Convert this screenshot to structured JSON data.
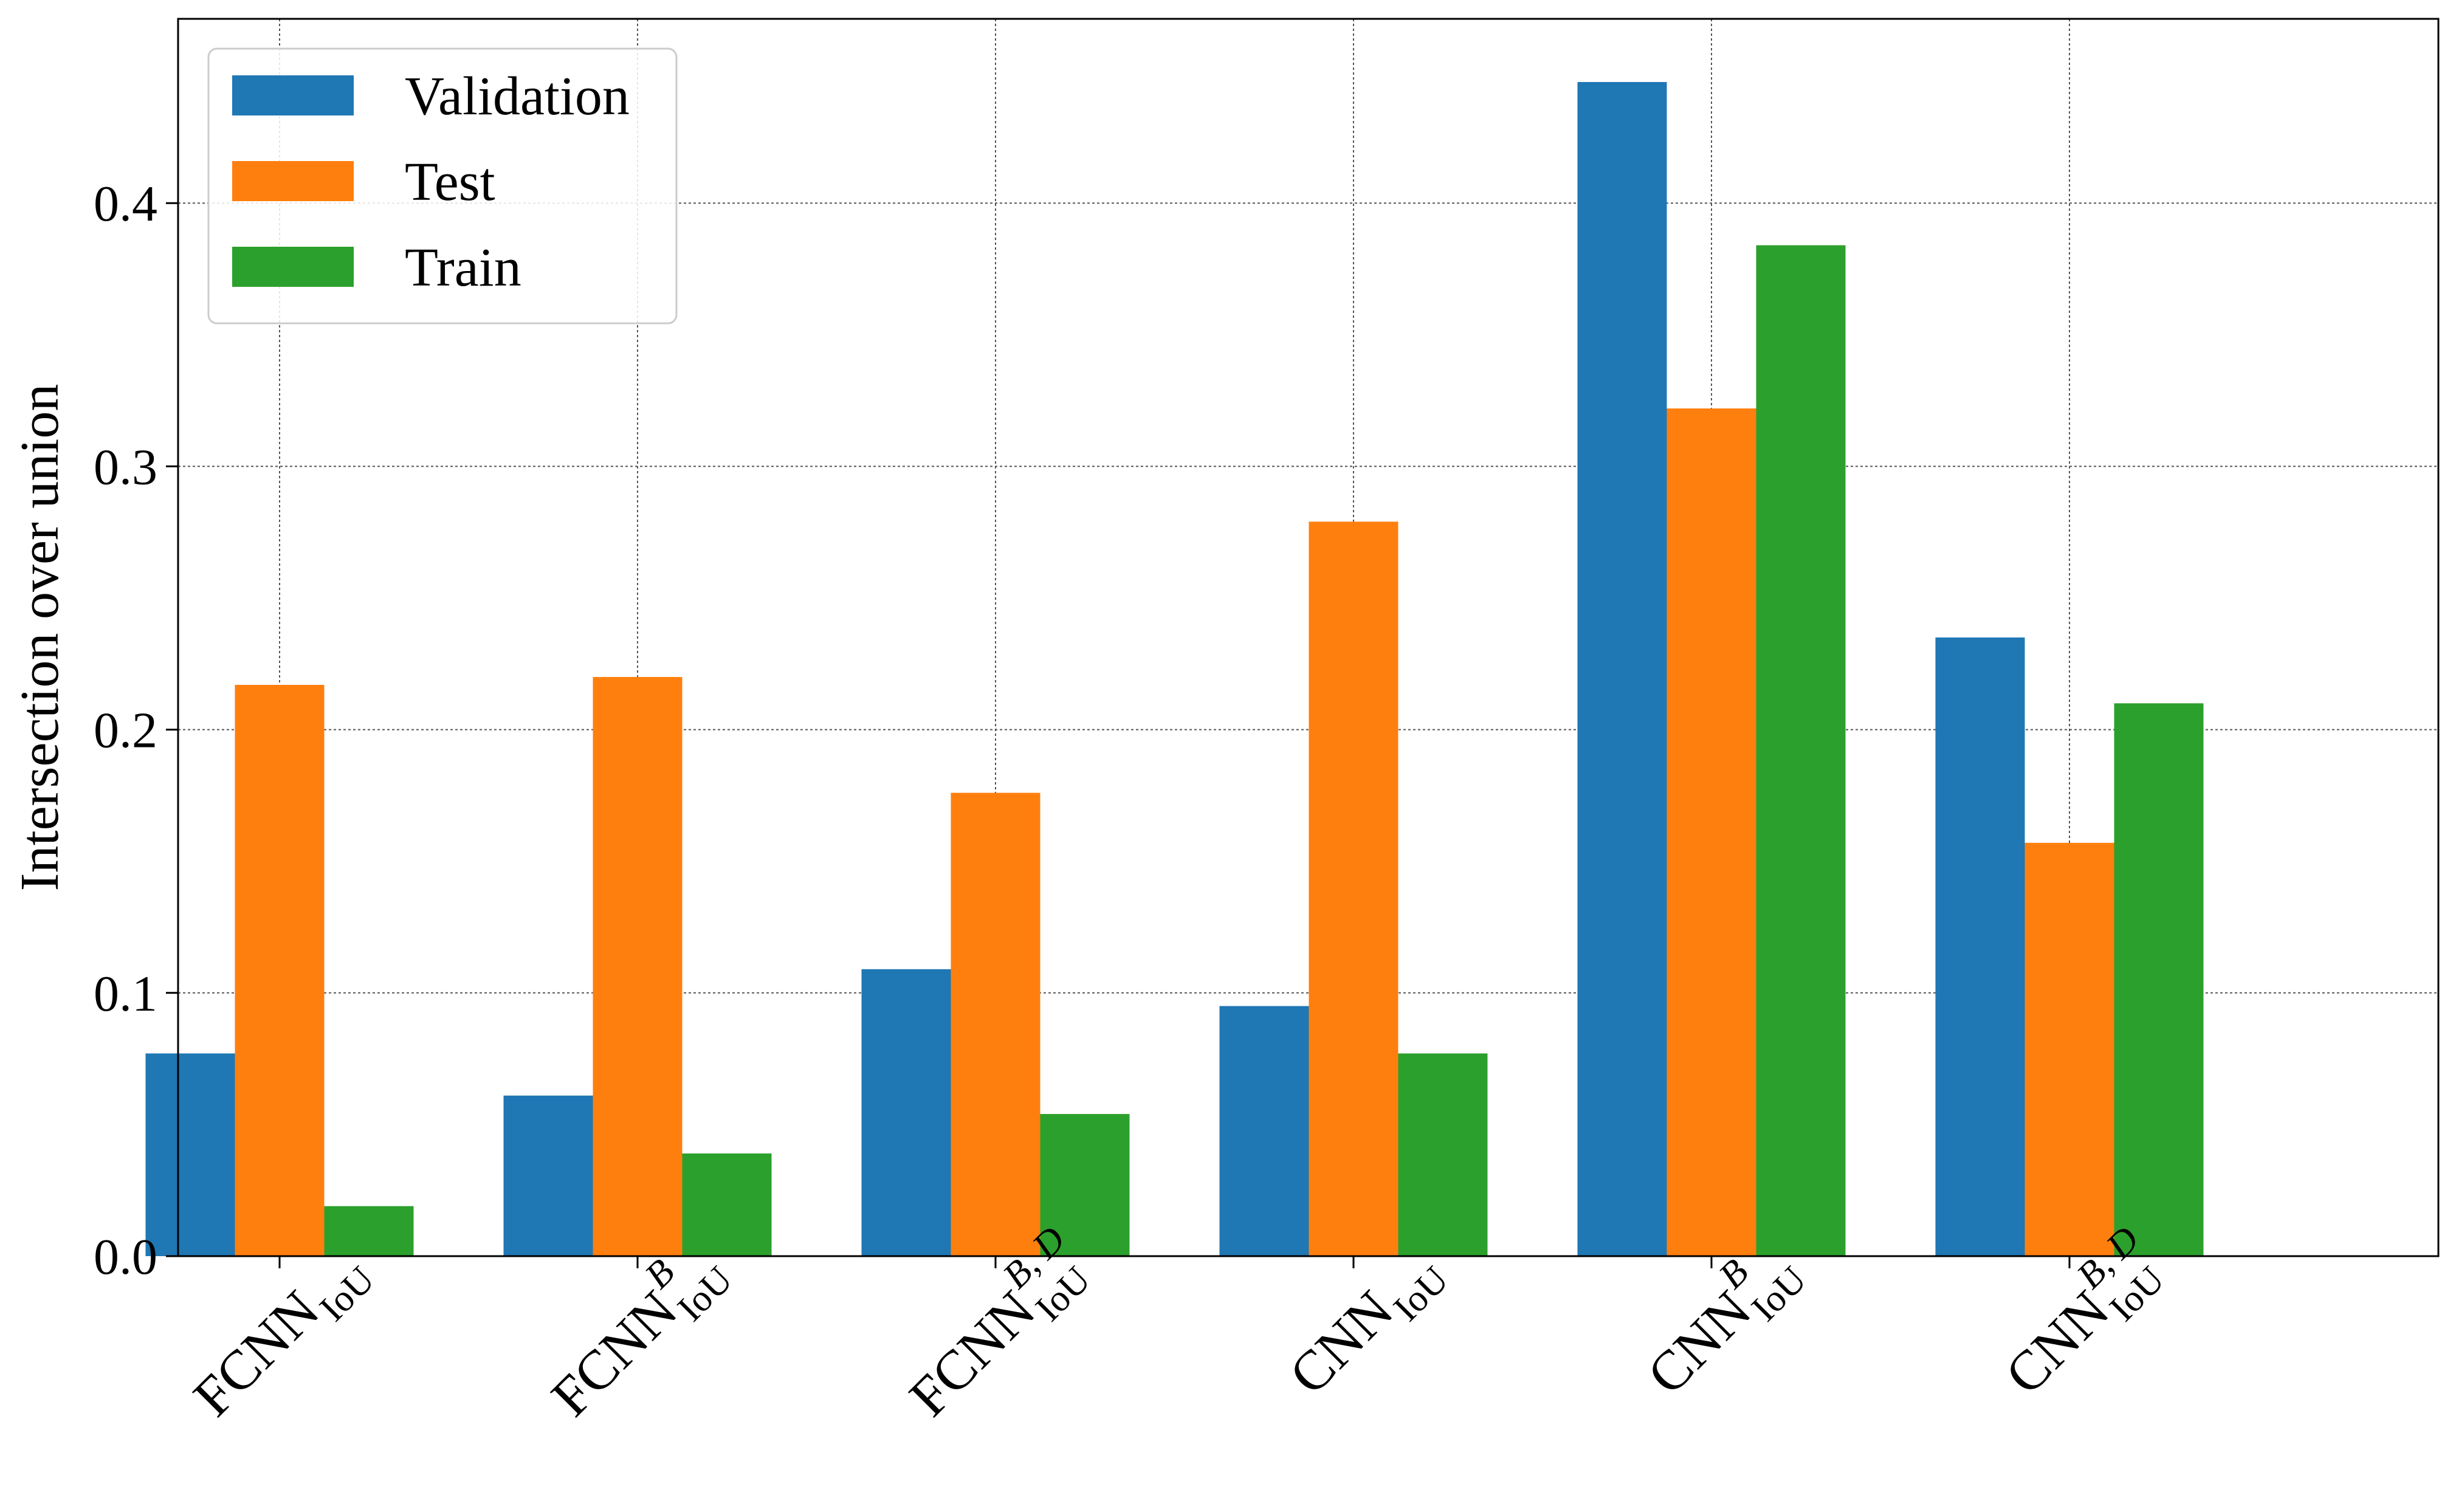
{
  "chart_data": {
    "type": "bar",
    "title": "",
    "xlabel": "",
    "ylabel": "Intersection over union",
    "ylim": [
      0,
      0.47
    ],
    "yticks": [
      "0.0",
      "0.1",
      "0.2",
      "0.3",
      "0.4"
    ],
    "ytick_values": [
      0,
      0.1,
      0.2,
      0.3,
      0.4
    ],
    "grid": true,
    "legend_position": "top-left",
    "categories": [
      {
        "label": "FCNN_IoU",
        "main": "FCNN",
        "sub": "IoU",
        "sup": ""
      },
      {
        "label": "FCNN_IoU^B",
        "main": "FCNN",
        "sub": "IoU",
        "sup": "B"
      },
      {
        "label": "FCNN_IoU^B,D",
        "main": "FCNN",
        "sub": "IoU",
        "sup": "B, D"
      },
      {
        "label": "CNN_IoU",
        "main": "CNN",
        "sub": "IoU",
        "sup": ""
      },
      {
        "label": "CNN_IoU^B",
        "main": "CNN",
        "sub": "IoU",
        "sup": "B"
      },
      {
        "label": "CNN_IoU^B,D",
        "main": "CNN",
        "sub": "IoU",
        "sup": "B, D"
      }
    ],
    "series": [
      {
        "name": "Validation",
        "color": "#1f77b4",
        "values": [
          0.077,
          0.061,
          0.109,
          0.095,
          0.446,
          0.235
        ]
      },
      {
        "name": "Test",
        "color": "#ff7f0e",
        "values": [
          0.217,
          0.22,
          0.176,
          0.279,
          0.322,
          0.157
        ]
      },
      {
        "name": "Train",
        "color": "#2ca02c",
        "values": [
          0.019,
          0.039,
          0.054,
          0.077,
          0.384,
          0.21
        ]
      }
    ]
  }
}
